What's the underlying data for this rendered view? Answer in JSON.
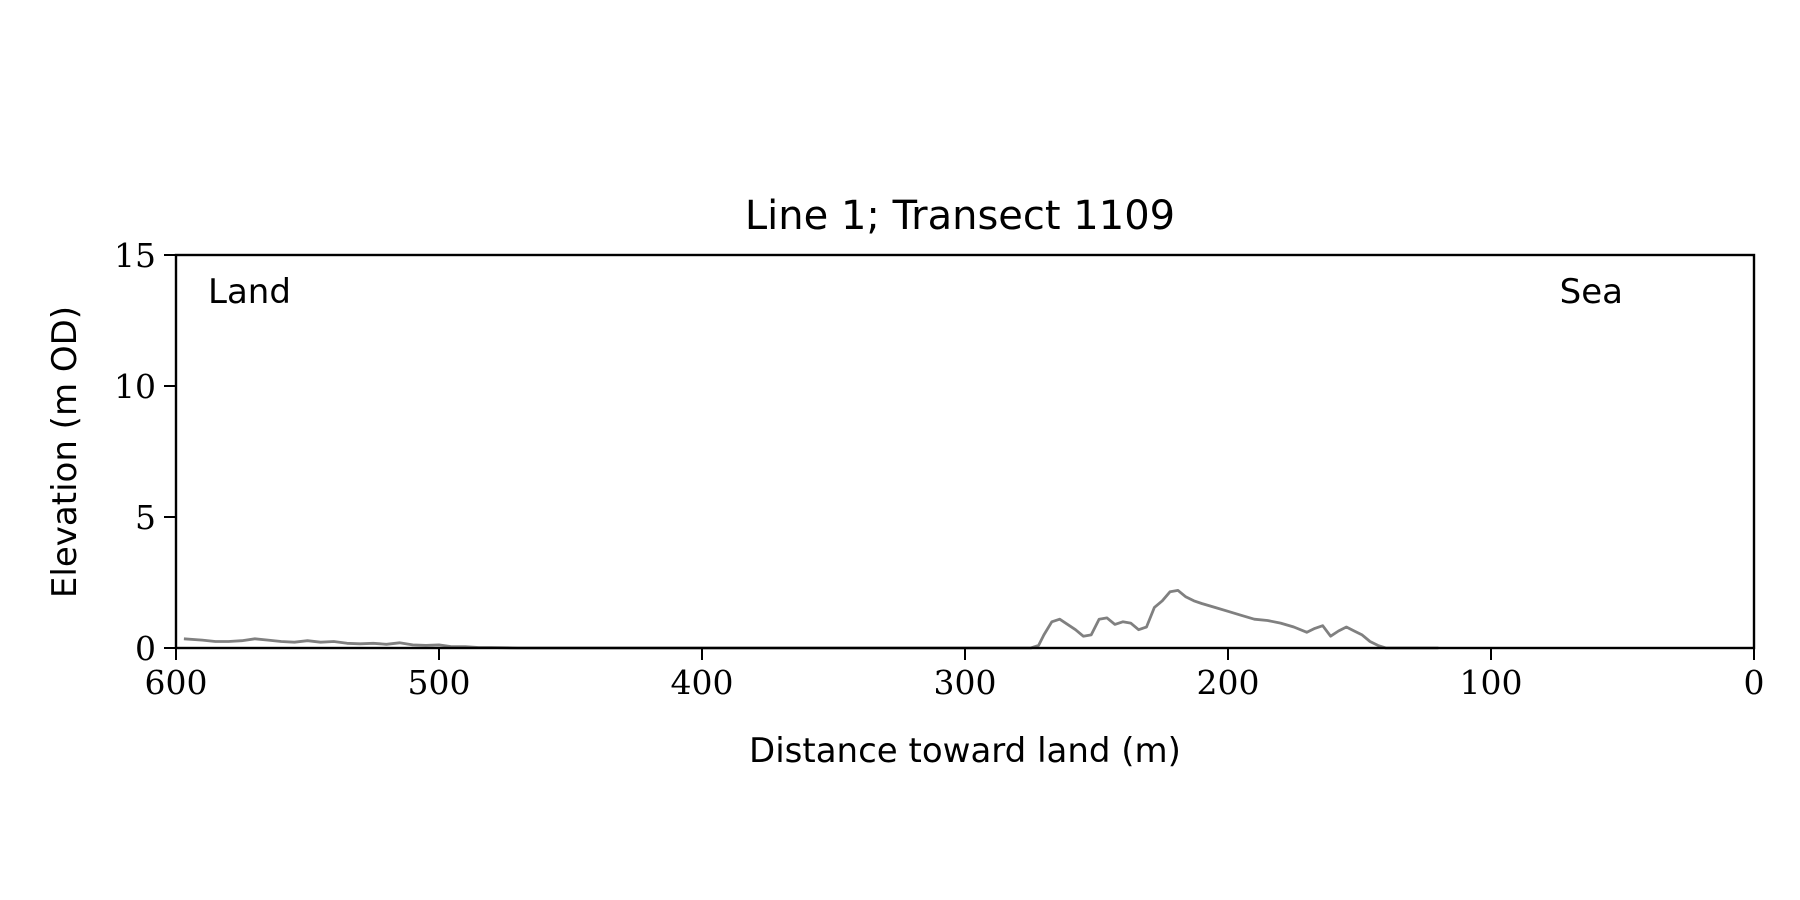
{
  "chart_data": {
    "type": "line",
    "title": "Line 1; Transect 1109",
    "xlabel": "Distance toward land (m)",
    "ylabel": "Elevation (m OD)",
    "xlim": [
      600,
      0
    ],
    "ylim": [
      0,
      15
    ],
    "x_reversed": true,
    "xticks": [
      600,
      500,
      400,
      300,
      200,
      100,
      0
    ],
    "yticks": [
      0,
      5,
      10,
      15
    ],
    "grid": false,
    "annotations": [
      {
        "text": "Land",
        "position": "top-left"
      },
      {
        "text": "Sea",
        "position": "top-right"
      }
    ],
    "series": [
      {
        "color": "#808080",
        "x": [
          597,
          590,
          585,
          580,
          575,
          570,
          565,
          560,
          555,
          550,
          545,
          540,
          535,
          530,
          525,
          520,
          515,
          510,
          505,
          500,
          495,
          490,
          485,
          480,
          470,
          460,
          450,
          400,
          350,
          280,
          275,
          272,
          270,
          267,
          264,
          261,
          258,
          255,
          252,
          249,
          246,
          243,
          240,
          237,
          234,
          231,
          228,
          225,
          222,
          219,
          216,
          213,
          210,
          205,
          200,
          195,
          190,
          185,
          180,
          175,
          170,
          167,
          164,
          161,
          158,
          155,
          152,
          149,
          146,
          143,
          140,
          130,
          120
        ],
        "y": [
          0.35,
          0.3,
          0.25,
          0.25,
          0.28,
          0.35,
          0.3,
          0.25,
          0.22,
          0.28,
          0.22,
          0.25,
          0.18,
          0.16,
          0.18,
          0.14,
          0.2,
          0.12,
          0.1,
          0.12,
          0.05,
          0.05,
          0.02,
          0.02,
          0.0,
          0.0,
          0.0,
          0.0,
          0.0,
          0.0,
          0.0,
          0.1,
          0.5,
          1.0,
          1.1,
          0.9,
          0.7,
          0.45,
          0.5,
          1.1,
          1.15,
          0.9,
          1.0,
          0.95,
          0.7,
          0.8,
          1.55,
          1.8,
          2.15,
          2.2,
          1.95,
          1.8,
          1.7,
          1.55,
          1.4,
          1.25,
          1.1,
          1.05,
          0.95,
          0.8,
          0.6,
          0.75,
          0.85,
          0.45,
          0.65,
          0.8,
          0.65,
          0.5,
          0.25,
          0.1,
          0.0,
          0.0,
          0.0
        ]
      }
    ]
  }
}
